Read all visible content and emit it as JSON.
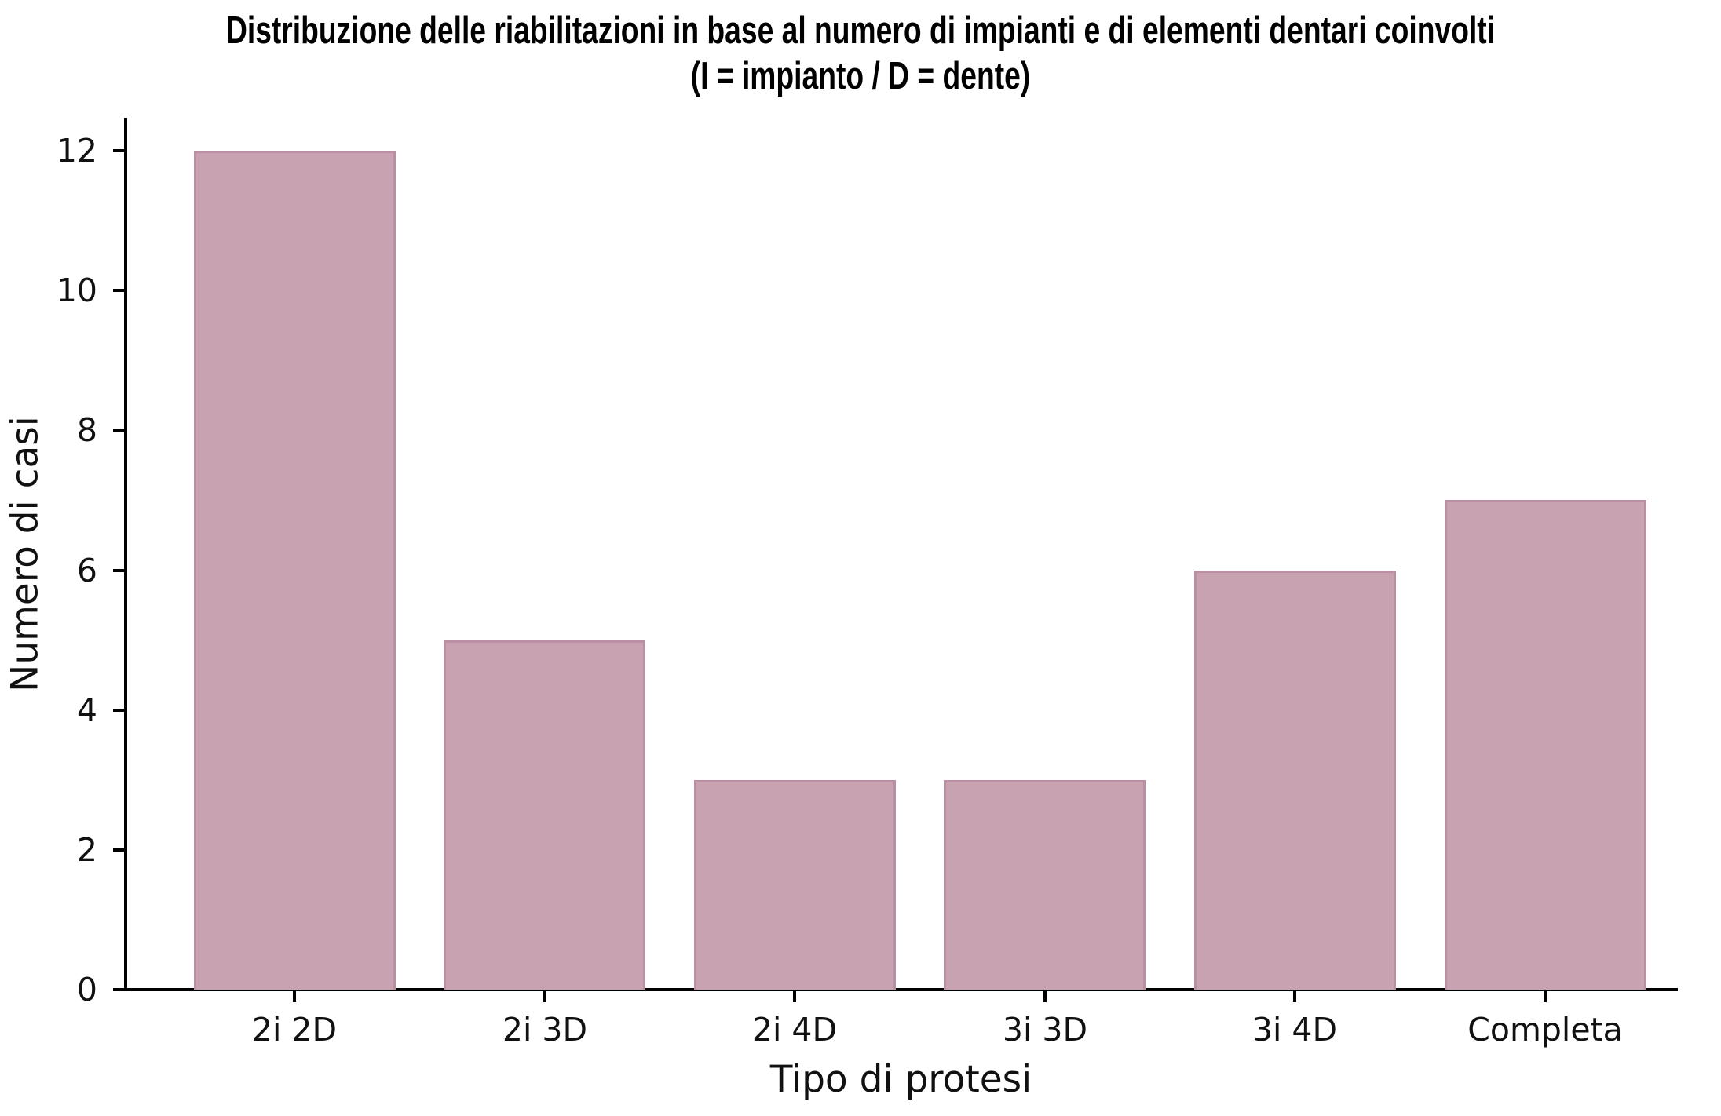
{
  "title": {
    "line1": "Distribuzione delle riabilitazioni in base al numero di impianti e di elementi dentari coinvolti",
    "line2": "(I = impianto / D = dente)"
  },
  "chart_data": {
    "type": "bar",
    "title": "Distribuzione delle riabilitazioni in base al numero di impianti e di elementi dentari coinvolti (I = impianto / D = dente)",
    "categories": [
      "2i 2D",
      "2i 3D",
      "2i 4D",
      "3i 3D",
      "3i 4D",
      "Completa"
    ],
    "values": [
      12,
      5,
      3,
      3,
      6,
      7
    ],
    "xlabel": "Tipo di protesi",
    "ylabel": "Numero di casi",
    "yticks": [
      0,
      2,
      4,
      6,
      8,
      10,
      12
    ],
    "ylim": [
      0,
      12.45
    ],
    "grid": false,
    "legend": null,
    "bar_color": "#c8a2b0",
    "bar_edge_color": "#bb8fa3",
    "axis_color": "#000000"
  }
}
